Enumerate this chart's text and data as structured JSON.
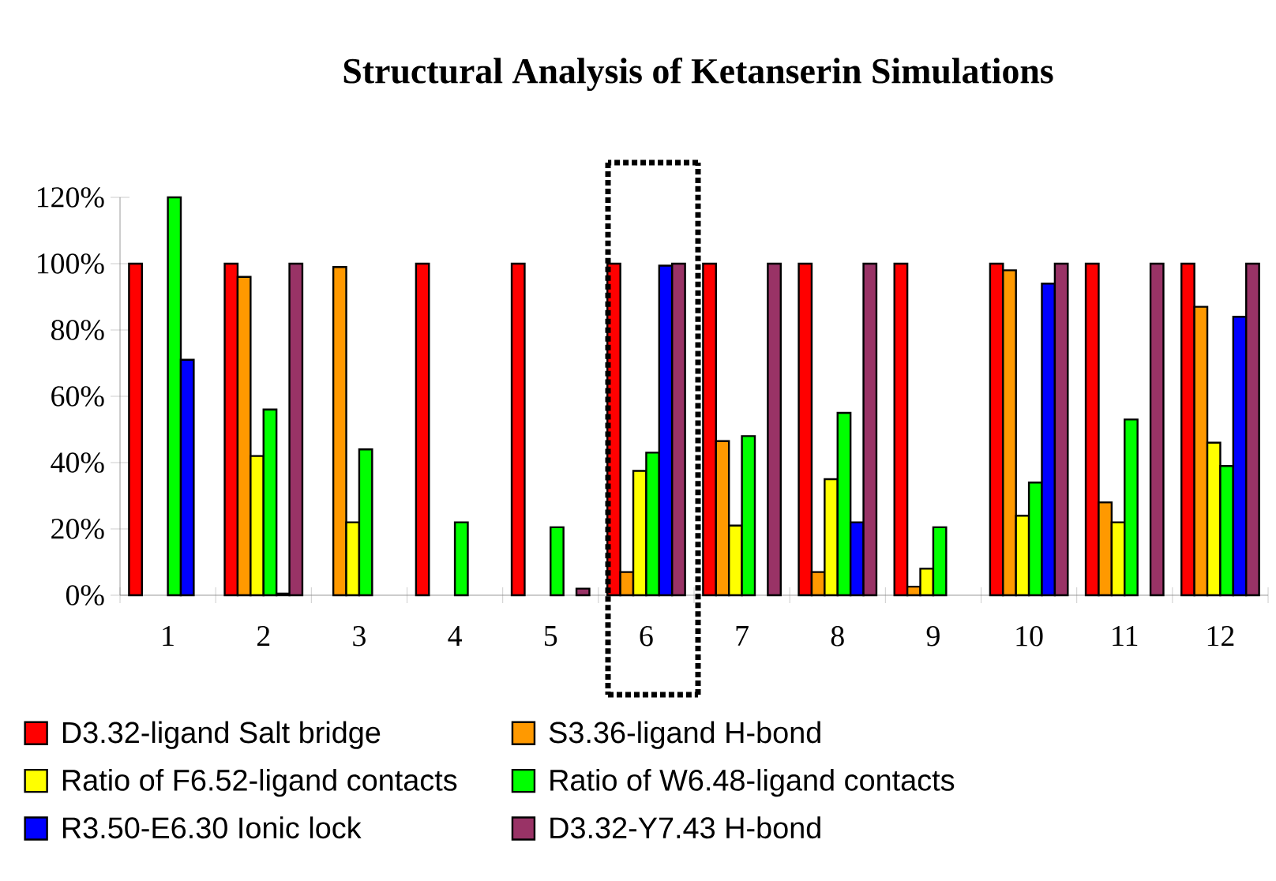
{
  "chart_data": {
    "type": "bar",
    "title": "Structural Analysis of Ketanserin Simulations",
    "categories": [
      "1",
      "2",
      "3",
      "4",
      "5",
      "6",
      "7",
      "8",
      "9",
      "10",
      "11",
      "12"
    ],
    "series": [
      {
        "name": "D3.32-ligand Salt bridge",
        "color": "#ff0000",
        "values": [
          100,
          100,
          null,
          100,
          100,
          100,
          100,
          100,
          100,
          100,
          100,
          100
        ]
      },
      {
        "name": "S3.36-ligand H-bond",
        "color": "#ff9900",
        "values": [
          null,
          96,
          99,
          null,
          null,
          7,
          46.5,
          7,
          2.6,
          98,
          28,
          87
        ]
      },
      {
        "name": "Ratio of F6.52-ligand contacts",
        "color": "#ffff00",
        "values": [
          null,
          42,
          22,
          null,
          null,
          37.5,
          21,
          35,
          8,
          24,
          22,
          46
        ]
      },
      {
        "name": "Ratio of W6.48-ligand contacts",
        "color": "#00ff00",
        "values": [
          120,
          56,
          44,
          22,
          20.5,
          43,
          48,
          55,
          20.5,
          34,
          53,
          39
        ]
      },
      {
        "name": "R3.50-E6.30 Ionic lock",
        "color": "#0000ff",
        "values": [
          71,
          0.5,
          null,
          null,
          null,
          99.4,
          null,
          22,
          null,
          94,
          null,
          84
        ]
      },
      {
        "name": "D3.32-Y7.43 H-bond",
        "color": "#993366",
        "values": [
          null,
          100,
          null,
          null,
          2,
          100,
          100,
          100,
          null,
          100,
          100,
          100
        ]
      }
    ],
    "ylim": [
      0,
      120
    ],
    "yticks": [
      {
        "value": 0,
        "label": "0%"
      },
      {
        "value": 20,
        "label": "20%"
      },
      {
        "value": 40,
        "label": "40%"
      },
      {
        "value": 60,
        "label": "60%"
      },
      {
        "value": 80,
        "label": "80%"
      },
      {
        "value": 100,
        "label": "100%"
      },
      {
        "value": 120,
        "label": "120%"
      }
    ],
    "legend": "bottom",
    "grid": false
  }
}
